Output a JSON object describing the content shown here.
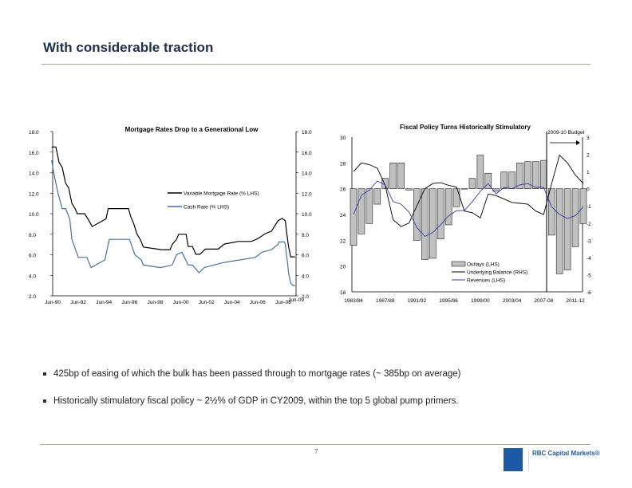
{
  "slide": {
    "title": "With considerable traction",
    "page_number": "7",
    "brand": "RBC Capital Markets®",
    "logo_text": "RBC",
    "bullets": [
      "425bp of easing of which the bulk has been passed through to mortgage rates (~ 385bp on average)",
      "Historically stimulatory fiscal policy ~ 2½% of GDP in CY2009, within the top 5 global pump primers."
    ]
  },
  "chart_data": [
    {
      "type": "line",
      "title": "Mortgage Rates Drop to a Generational Low",
      "ylim": [
        2,
        18
      ],
      "y_ticks": [
        "2.0",
        "4.0",
        "6.0",
        "8.0",
        "10.0",
        "12.0",
        "14.0",
        "16.0",
        "18.0"
      ],
      "y2_ticks": [
        "2.0",
        "4.0",
        "6.0",
        "8.0",
        "10.0",
        "12.0",
        "14.0",
        "16.0",
        "18.0"
      ],
      "x_ticks": [
        "Jun-90",
        "Jun-92",
        "Jun-94",
        "Jun-96",
        "Jun-98",
        "Jun-00",
        "Jun-02",
        "Jun-04",
        "Jun-06",
        "Jun-08",
        "Jun-09"
      ],
      "legend_placement": "center-right",
      "step": true,
      "series": [
        {
          "name": "Variable Mortgage Rate (% LHS)",
          "color": "#000000",
          "points": [
            [
              "1990-06",
              16.5
            ],
            [
              "1990-10",
              16.5
            ],
            [
              "1991-01",
              15
            ],
            [
              "1991-04",
              14.5
            ],
            [
              "1991-07",
              13
            ],
            [
              "1991-10",
              12.5
            ],
            [
              "1992-01",
              11
            ],
            [
              "1992-04",
              10.5
            ],
            [
              "1992-06",
              10
            ],
            [
              "1993-01",
              10
            ],
            [
              "1993-04",
              9.5
            ],
            [
              "1993-08",
              8.75
            ],
            [
              "1994-09",
              9.5
            ],
            [
              "1994-11",
              10.5
            ],
            [
              "1996-06",
              10.5
            ],
            [
              "1996-08",
              9.75
            ],
            [
              "1996-11",
              9
            ],
            [
              "1997-02",
              8
            ],
            [
              "1997-05",
              7.5
            ],
            [
              "1997-08",
              6.75
            ],
            [
              "1999-01",
              6.5
            ],
            [
              "1999-09",
              6.5
            ],
            [
              "1999-11",
              7
            ],
            [
              "2000-03",
              7.5
            ],
            [
              "2000-05",
              8
            ],
            [
              "2000-12",
              8
            ],
            [
              "2001-02",
              6.8
            ],
            [
              "2001-06",
              6.8
            ],
            [
              "2001-09",
              6.05
            ],
            [
              "2002-01",
              6.05
            ],
            [
              "2002-06",
              6.55
            ],
            [
              "2003-06",
              6.55
            ],
            [
              "2003-12",
              7.05
            ],
            [
              "2005-01",
              7.3
            ],
            [
              "2006-01",
              7.3
            ],
            [
              "2006-07",
              7.55
            ],
            [
              "2007-02",
              8.05
            ],
            [
              "2007-08",
              8.3
            ],
            [
              "2008-02",
              9.3
            ],
            [
              "2008-06",
              9.55
            ],
            [
              "2008-09",
              9.3
            ],
            [
              "2008-10",
              8.3
            ],
            [
              "2008-12",
              6.8
            ],
            [
              "2009-02",
              5.8
            ],
            [
              "2009-06",
              5.8
            ]
          ]
        },
        {
          "name": "Cash Rate (% LHS)",
          "color": "#4a6fa5",
          "points": [
            [
              "1990-06",
              15.2
            ],
            [
              "1990-08",
              14
            ],
            [
              "1990-12",
              12
            ],
            [
              "1991-04",
              10.5
            ],
            [
              "1991-07",
              10.5
            ],
            [
              "1991-11",
              9.5
            ],
            [
              "1992-01",
              7.5
            ],
            [
              "1992-07",
              5.75
            ],
            [
              "1993-03",
              5.75
            ],
            [
              "1993-07",
              4.75
            ],
            [
              "1994-08",
              5.5
            ],
            [
              "1994-12",
              7.5
            ],
            [
              "1996-07",
              7.5
            ],
            [
              "1996-12",
              6
            ],
            [
              "1997-06",
              5.5
            ],
            [
              "1997-08",
              5
            ],
            [
              "1998-12",
              4.75
            ],
            [
              "1999-11",
              5
            ],
            [
              "2000-03",
              6
            ],
            [
              "2000-08",
              6.25
            ],
            [
              "2001-02",
              5
            ],
            [
              "2001-06",
              5
            ],
            [
              "2001-10",
              4.5
            ],
            [
              "2001-12",
              4.25
            ],
            [
              "2002-05",
              4.75
            ],
            [
              "2003-11",
              5.25
            ],
            [
              "2005-03",
              5.5
            ],
            [
              "2006-05",
              5.75
            ],
            [
              "2006-11",
              6.25
            ],
            [
              "2007-08",
              6.5
            ],
            [
              "2008-02",
              7
            ],
            [
              "2008-03",
              7.25
            ],
            [
              "2008-08",
              7.25
            ],
            [
              "2008-09",
              7
            ],
            [
              "2008-10",
              6
            ],
            [
              "2008-11",
              5.25
            ],
            [
              "2008-12",
              4.25
            ],
            [
              "2009-02",
              3.25
            ],
            [
              "2009-04",
              3
            ],
            [
              "2009-06",
              3
            ]
          ]
        }
      ]
    },
    {
      "type": "bar+line",
      "title": "Fiscal Policy Turns Historically Stimulatory",
      "annotation": "2009-10 Budget",
      "ylim": [
        18,
        30
      ],
      "y2lim": [
        -6,
        3
      ],
      "y_ticks": [
        "18",
        "20",
        "22",
        "24",
        "26",
        "28",
        "30"
      ],
      "y2_ticks": [
        "-6",
        "-5",
        "-4",
        "-3",
        "-2",
        "-1",
        "0",
        "1",
        "2",
        "3"
      ],
      "x_ticks": [
        "1983/84",
        "1987/88",
        "1991/92",
        "1995/96",
        "1999/00",
        "2003/04",
        "2007-08",
        "2011-12"
      ],
      "categories": [
        "1983/84",
        "1984/85",
        "1985/86",
        "1986/87",
        "1987/88",
        "1988/89",
        "1989/90",
        "1990/91",
        "1991/92",
        "1992/93",
        "1993/94",
        "1994/95",
        "1995/96",
        "1996/97",
        "1997/98",
        "1998/99",
        "1999/00",
        "2000/01",
        "2001/02",
        "2002/03",
        "2003/04",
        "2004/05",
        "2005/06",
        "2006/07",
        "2007/08",
        "2008/09",
        "2009/10",
        "2010/11",
        "2011/12",
        "2012/13"
      ],
      "bar_baseline": 26,
      "legend_placement": "bottom-center",
      "series": [
        {
          "name": "Outlays (LHS)",
          "kind": "bar",
          "color": "#c0c0c0",
          "values": [
            21.6,
            22.5,
            23.3,
            24.8,
            26.8,
            28,
            28,
            25.9,
            22,
            20.5,
            20.6,
            22.1,
            23.2,
            24.6,
            26,
            26.8,
            28.6,
            27.2,
            25.8,
            27.3,
            27.3,
            28,
            28.1,
            28.1,
            28.2,
            22.4,
            19.4,
            19.7,
            21.5,
            23.3
          ]
        },
        {
          "name": "Underlying Balance (RHS)",
          "kind": "line",
          "axis": "right",
          "color": "#000000",
          "values": [
            1.0,
            1.5,
            1.4,
            1.2,
            0.2,
            -1.8,
            -2.2,
            -2.0,
            -1.0,
            0.0,
            0.3,
            0.35,
            0.2,
            0.1,
            -1.3,
            -1.4,
            -1.7,
            -0.3,
            -0.4,
            -0.6,
            -0.8,
            -0.85,
            -0.9,
            -1.3,
            -1.5,
            0.3,
            1.95,
            1.5,
            0.8,
            0.3
          ]
        },
        {
          "name": "Revenues (LHS)",
          "kind": "line",
          "axis": "left",
          "color": "#3a3aa0",
          "values": [
            24.0,
            25.5,
            25.9,
            26.6,
            26.3,
            25.0,
            24.8,
            24.2,
            23.0,
            22.3,
            22.6,
            23.2,
            23.9,
            24.3,
            24.3,
            25.0,
            25.8,
            26.4,
            25.6,
            26.1,
            26.0,
            26.3,
            26.4,
            26.1,
            26.1,
            24.6,
            24.0,
            23.7,
            23.9,
            24.6
          ]
        }
      ]
    }
  ]
}
